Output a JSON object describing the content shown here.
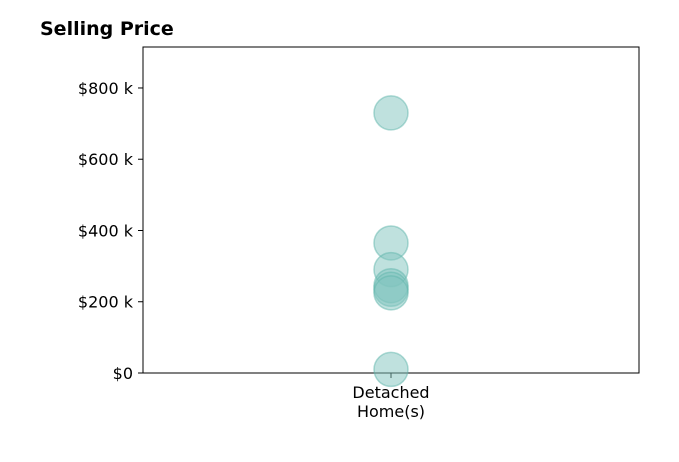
{
  "chart_data": {
    "type": "scatter",
    "title": "Selling Price",
    "xlabel": "",
    "ylabel": "",
    "categories": [
      "Detached Home(s)"
    ],
    "category_label_lines": [
      "Detached",
      "Home(s)"
    ],
    "series": [
      {
        "category": "Detached Home(s)",
        "values": [
          730000,
          365000,
          290000,
          245000,
          235000,
          225000,
          10000
        ]
      }
    ],
    "ylim": [
      0,
      915000
    ],
    "yticks": [
      0,
      200000,
      400000,
      600000,
      800000
    ],
    "ytick_labels": [
      "$0",
      "$200 k",
      "$400 k",
      "$600 k",
      "$800 k"
    ],
    "grid": false,
    "legend": "none",
    "marker_color": "#7fc4bd",
    "marker_stroke": "#5fb5ab"
  }
}
